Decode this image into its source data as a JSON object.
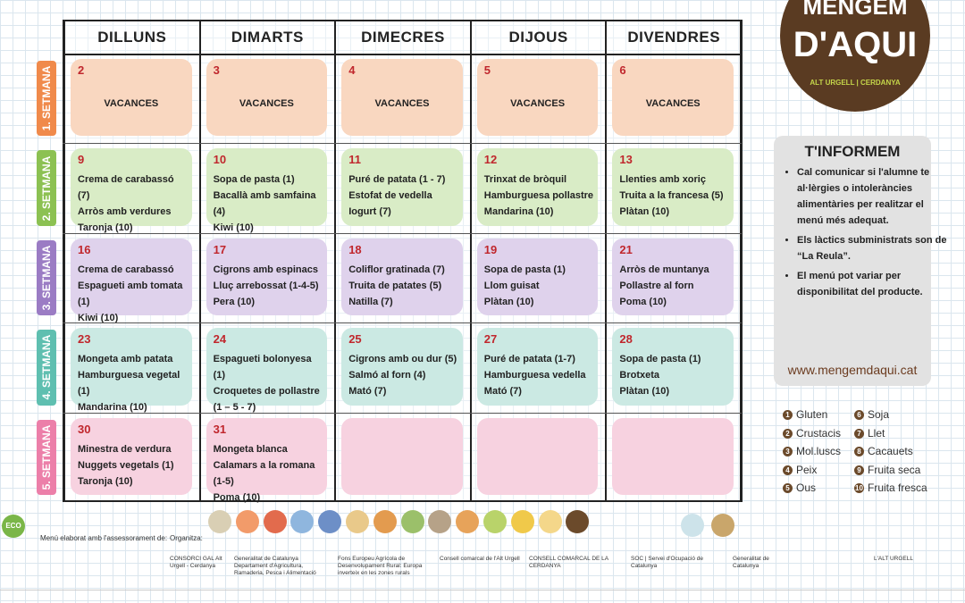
{
  "logo": {
    "line1": "MENGEM",
    "line2": "D'AQUI",
    "tagline": "ALT URGELL | CERDANYA"
  },
  "calendar": {
    "weekdays": [
      "DILLUNS",
      "DIMARTS",
      "DIMECRES",
      "DIJOUS",
      "DIVENDRES"
    ],
    "weeks": [
      {
        "label": "1. SETMANA",
        "days": [
          {
            "day": 2,
            "note": "VACANCES"
          },
          {
            "day": 3,
            "note": "VACANCES"
          },
          {
            "day": 4,
            "note": "VACANCES"
          },
          {
            "day": 5,
            "note": "VACANCES"
          },
          {
            "day": 6,
            "note": "VACANCES"
          }
        ]
      },
      {
        "label": "2. SETMANA",
        "days": [
          {
            "day": 9,
            "items": [
              "Crema de carabassó (7)",
              "Arròs amb verdures",
              "Taronja (10)"
            ]
          },
          {
            "day": 10,
            "items": [
              "Sopa de pasta (1)",
              "Bacallà amb samfaina (4)",
              "Kiwi  (10)"
            ]
          },
          {
            "day": 11,
            "items": [
              "Puré de patata (1 - 7)",
              "Estofat de vedella",
              "Iogurt (7)"
            ]
          },
          {
            "day": 12,
            "items": [
              "Trinxat de bròquil",
              "Hamburguesa pollastre",
              "Mandarina (10)"
            ]
          },
          {
            "day": 13,
            "items": [
              "Llenties amb xoriç",
              "Truita a la francesa (5)",
              "Plàtan (10)"
            ]
          }
        ]
      },
      {
        "label": "3. SETMANA",
        "days": [
          {
            "day": 16,
            "items": [
              "Crema de carabassó",
              "Espagueti amb tomata (1)",
              "Kiwi (10)"
            ]
          },
          {
            "day": 17,
            "items": [
              "Cigrons amb espinacs",
              "Lluç arrebossat (1-4-5)",
              "Pera  (10)"
            ]
          },
          {
            "day": 18,
            "items": [
              "Coliflor gratinada (7)",
              "Truita de patates (5)",
              "Natilla (7)"
            ]
          },
          {
            "day": 19,
            "items": [
              "Sopa de pasta (1)",
              "Llom guisat",
              "Plàtan (10)"
            ]
          },
          {
            "day": 21,
            "items": [
              "Arròs de muntanya",
              "Pollastre al forn",
              "Poma (10)"
            ]
          }
        ]
      },
      {
        "label": "4. SETMANA",
        "days": [
          {
            "day": 23,
            "items": [
              "Mongeta amb patata",
              "Hamburguesa vegetal (1)",
              "Mandarina (10)"
            ]
          },
          {
            "day": 24,
            "items": [
              "Espagueti bolonyesa (1)",
              "Croquetes de pollastre (1 – 5 - 7)",
              "Kiwi (10)"
            ]
          },
          {
            "day": 25,
            "items": [
              "Cigrons amb ou dur (5)",
              "Salmó al forn (4)",
              "Mató (7)"
            ]
          },
          {
            "day": 27,
            "items": [
              "Puré de patata (1-7)",
              "Hamburguesa vedella",
              "Mató (7)"
            ]
          },
          {
            "day": 28,
            "items": [
              "Sopa de pasta (1)",
              "Brotxeta",
              "Plàtan (10)"
            ]
          }
        ]
      },
      {
        "label": "5. SETMANA",
        "days": [
          {
            "day": 30,
            "items": [
              "Minestra de verdura",
              "Nuggets vegetals (1)",
              "Taronja (10)"
            ]
          },
          {
            "day": 31,
            "items": [
              "Mongeta blanca",
              "Calamars a la romana (1-5)",
              "Poma (10)"
            ]
          }
        ]
      }
    ]
  },
  "info": {
    "title": "T'INFORMEM",
    "bullets": [
      "Cal comunicar si l'alumne te al·lèrgies o intoleràncies alimentàries per realitzar el menú més adequat.",
      "Els làctics subministrats son de “La Reula”.",
      "El menú pot variar per disponibilitat del producte."
    ],
    "url": "www.mengemdaqui.cat"
  },
  "allergens": [
    {
      "number": 1,
      "name": "Gluten"
    },
    {
      "number": 2,
      "name": "Crustacis"
    },
    {
      "number": 3,
      "name": "Mol.luscs"
    },
    {
      "number": 4,
      "name": "Peix"
    },
    {
      "number": 5,
      "name": "Ous"
    },
    {
      "number": 6,
      "name": "Soja"
    },
    {
      "number": 7,
      "name": "Llet"
    },
    {
      "number": 8,
      "name": "Cacauets"
    },
    {
      "number": 9,
      "name": "Fruita seca"
    },
    {
      "number": 10,
      "name": "Fruita fresca"
    }
  ],
  "footer": {
    "eco": "ECO",
    "advisor_label": "Menú elaborat amb l'assessorament de:",
    "organizer_label": "Organitza:",
    "logos": [
      "CONSORCI GAL Alt Urgell - Cerdanya",
      "Generalitat de Catalunya Departament d'Agricultura, Ramaderia, Pesca i Alimentació",
      "Fons Europeu Agrícola de Desenvolupament Rural: Europa inverteix en les zones rurals",
      "Consell comarcal de l'Alt Urgell",
      "CONSELL COMARCAL DE LA CERDANYA",
      "SOC | Servei d'Ocupació de Catalunya",
      "Generalitat de Catalunya",
      "L'ALT URGELL"
    ]
  }
}
